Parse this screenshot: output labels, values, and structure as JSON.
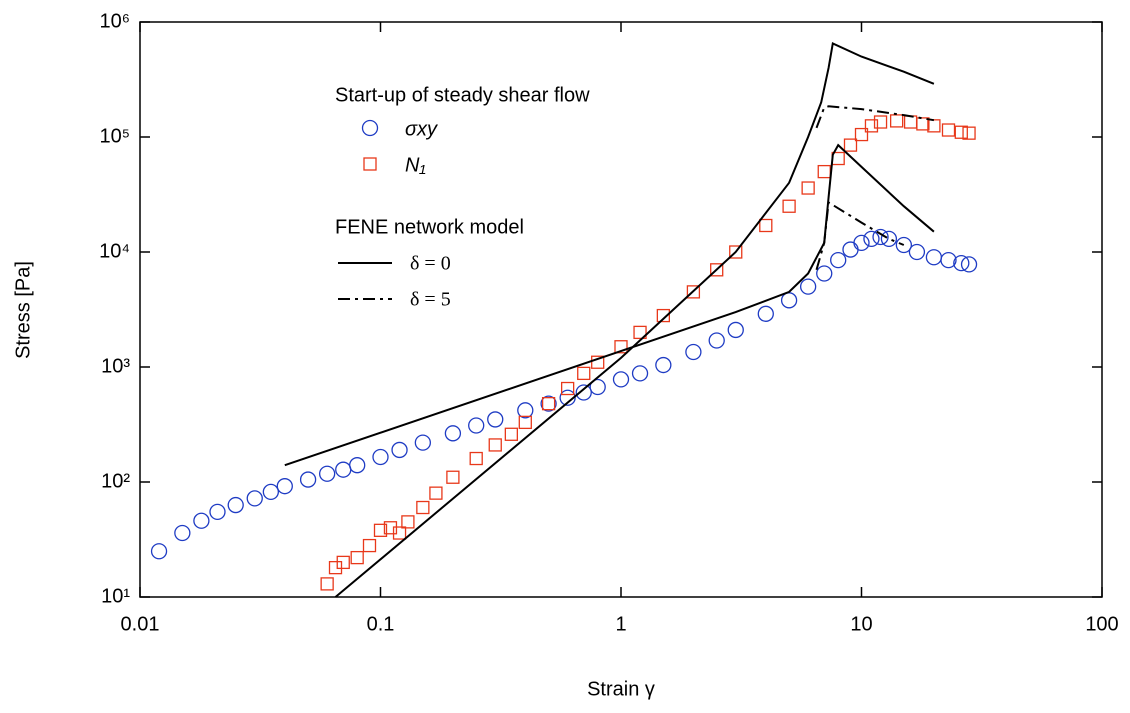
{
  "chart_data": {
    "type": "scatter",
    "xlabel": "Strain γ",
    "ylabel": "Stress [Pa]",
    "xscale": "log",
    "yscale": "log",
    "xlim": [
      0.01,
      100
    ],
    "xticks": [
      0.01,
      0.1,
      1,
      10,
      100
    ],
    "ylim": [
      10,
      1000000
    ],
    "yticks": [
      {
        "value": 10,
        "label": "10¹"
      },
      {
        "value": 100,
        "label": "10²"
      },
      {
        "value": 1000,
        "label": "10³"
      },
      {
        "value": 10000,
        "label": "10⁴"
      },
      {
        "value": 100000,
        "label": "10⁵"
      },
      {
        "value": 1000000,
        "label": "10⁶"
      }
    ],
    "legend_title": "Start-up of steady shear flow",
    "series": [
      {
        "name": "σxy",
        "marker": "circle",
        "color": "#1f3cc4",
        "x": [
          0.012,
          0.015,
          0.018,
          0.021,
          0.025,
          0.03,
          0.035,
          0.04,
          0.05,
          0.06,
          0.07,
          0.08,
          0.1,
          0.12,
          0.15,
          0.2,
          0.25,
          0.3,
          0.4,
          0.5,
          0.6,
          0.7,
          0.8,
          1,
          1.2,
          1.5,
          2,
          2.5,
          3,
          4,
          5,
          6,
          7,
          8,
          9,
          10,
          11,
          12,
          13,
          15,
          17,
          20,
          23,
          26,
          28
        ],
        "values": [
          25,
          36,
          46,
          55,
          63,
          72,
          82,
          92,
          105,
          118,
          128,
          140,
          165,
          190,
          220,
          265,
          310,
          350,
          420,
          480,
          540,
          600,
          670,
          780,
          880,
          1040,
          1350,
          1700,
          2100,
          2900,
          3800,
          5000,
          6500,
          8500,
          10500,
          12000,
          13000,
          13500,
          13000,
          11500,
          10000,
          9000,
          8500,
          8000,
          7800
        ]
      },
      {
        "name": "N₁",
        "marker": "square",
        "color": "#e8381a",
        "x": [
          0.06,
          0.065,
          0.07,
          0.08,
          0.09,
          0.1,
          0.11,
          0.12,
          0.13,
          0.15,
          0.17,
          0.2,
          0.25,
          0.3,
          0.35,
          0.4,
          0.5,
          0.6,
          0.7,
          0.8,
          1,
          1.2,
          1.5,
          2,
          2.5,
          3,
          4,
          5,
          6,
          7,
          8,
          9,
          10,
          11,
          12,
          14,
          16,
          18,
          20,
          23,
          26,
          28
        ],
        "values": [
          13,
          18,
          20,
          22,
          28,
          38,
          40,
          36,
          45,
          60,
          80,
          110,
          160,
          210,
          260,
          330,
          480,
          650,
          880,
          1100,
          1500,
          2000,
          2800,
          4500,
          7000,
          10000,
          17000,
          25000,
          36000,
          50000,
          65000,
          85000,
          105000,
          125000,
          135000,
          138000,
          135000,
          130000,
          125000,
          115000,
          110000,
          108000
        ]
      }
    ],
    "model_title": "FENE network model",
    "model_curves": [
      {
        "name": "δ = 0",
        "style": "solid",
        "color": "#000000",
        "curves": [
          {
            "x": [
              0.04,
              3,
              5,
              6,
              7,
              7.3,
              7.6,
              8,
              10,
              15,
              20
            ],
            "values": [
              140,
              3000,
              4500,
              6500,
              12000,
              30000,
              70000,
              85000,
              55000,
              25000,
              15000
            ]
          },
          {
            "x": [
              0.065,
              1,
              3,
              5,
              6,
              6.8,
              7.3,
              7.6,
              10,
              15,
              20
            ],
            "values": [
              10,
              1200,
              10000,
              40000,
              100000,
              200000,
              400000,
              650000,
              500000,
              370000,
              290000
            ]
          }
        ]
      },
      {
        "name": "δ = 5",
        "style": "dashdot",
        "color": "#000000",
        "curves": [
          {
            "x": [
              6.5,
              7,
              7.3,
              8,
              10,
              13,
              15
            ],
            "values": [
              7000,
              12000,
              27000,
              24000,
              18000,
              13000,
              11500
            ]
          },
          {
            "x": [
              6.5,
              7,
              7.3,
              10,
              15,
              20
            ],
            "values": [
              120000,
              180000,
              185000,
              175000,
              155000,
              140000
            ]
          }
        ]
      }
    ]
  }
}
